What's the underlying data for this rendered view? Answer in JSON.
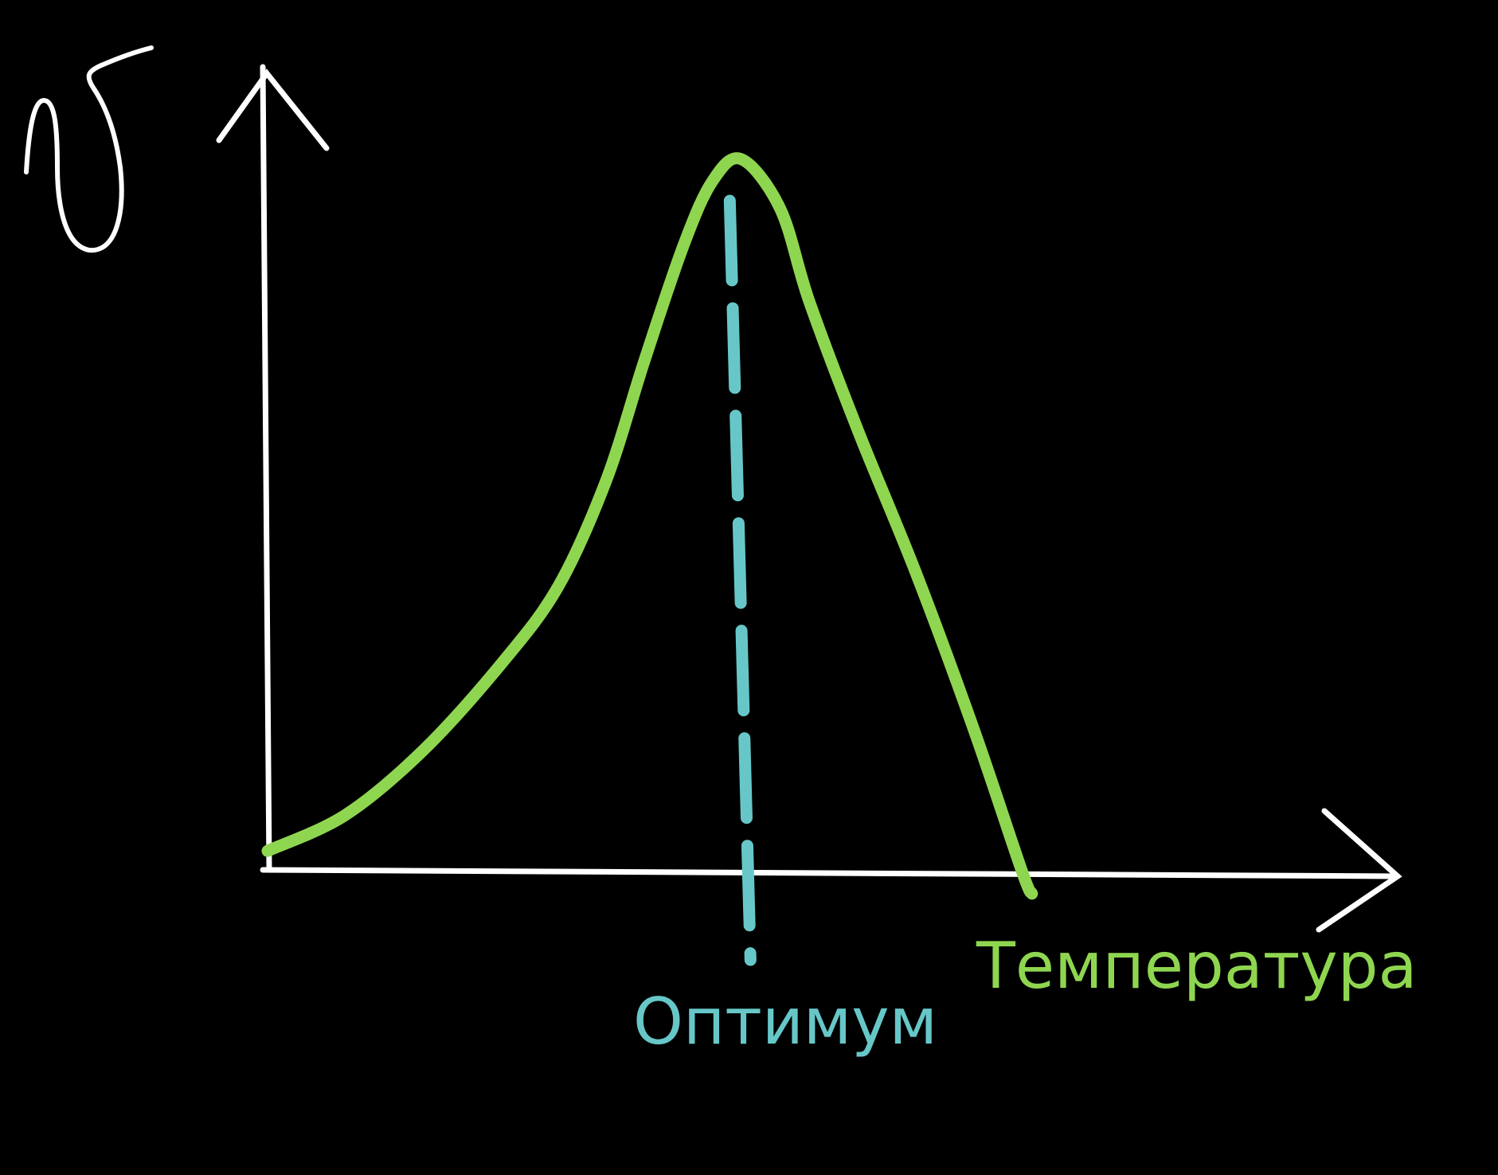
{
  "colors": {
    "background": "#000000",
    "axis": "#ffffff",
    "curve": "#8fd650",
    "optimum": "#67c7c8"
  },
  "chart_data": {
    "type": "line",
    "title": "",
    "ylabel_symbol": "υ",
    "xlabel": "Температура",
    "optimum_label": "Оптимум",
    "grid": false,
    "ticks": false,
    "series": [
      {
        "curve_shape": "bell-shaped, peak at optimum",
        "points": [
          [
            0.0,
            0.03
          ],
          [
            0.08,
            0.08
          ],
          [
            0.16,
            0.17
          ],
          [
            0.24,
            0.29
          ],
          [
            0.3,
            0.4
          ],
          [
            0.35,
            0.55
          ],
          [
            0.39,
            0.72
          ],
          [
            0.43,
            0.88
          ],
          [
            0.46,
            0.97
          ],
          [
            0.49,
            1.0
          ],
          [
            0.53,
            0.93
          ],
          [
            0.56,
            0.8
          ],
          [
            0.61,
            0.62
          ],
          [
            0.67,
            0.42
          ],
          [
            0.73,
            0.2
          ],
          [
            0.78,
            0.0
          ],
          [
            0.79,
            -0.03
          ]
        ]
      }
    ],
    "optimum_x": 0.49
  }
}
